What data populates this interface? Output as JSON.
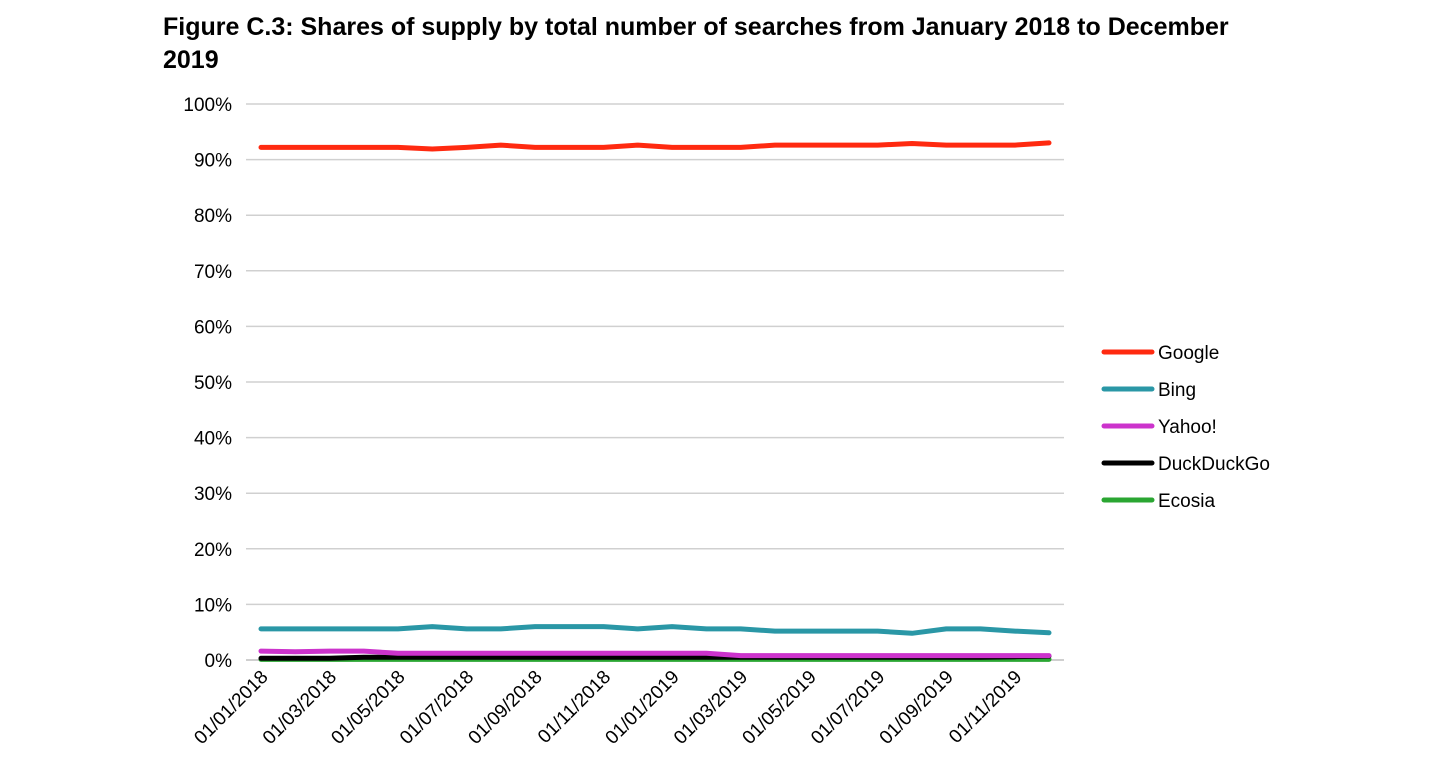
{
  "chart_data": {
    "type": "line",
    "title": "Figure C.3: Shares of supply by total number of searches from January 2018 to December 2019",
    "xlabel": "",
    "ylabel": "",
    "ylim": [
      0,
      100
    ],
    "y_ticks": [
      "0%",
      "10%",
      "20%",
      "30%",
      "40%",
      "50%",
      "60%",
      "70%",
      "80%",
      "90%",
      "100%"
    ],
    "x": [
      "01/01/2018",
      "01/02/2018",
      "01/03/2018",
      "01/04/2018",
      "01/05/2018",
      "01/06/2018",
      "01/07/2018",
      "01/08/2018",
      "01/09/2018",
      "01/10/2018",
      "01/11/2018",
      "01/12/2018",
      "01/01/2019",
      "01/02/2019",
      "01/03/2019",
      "01/04/2019",
      "01/05/2019",
      "01/06/2019",
      "01/07/2019",
      "01/08/2019",
      "01/09/2019",
      "01/10/2019",
      "01/11/2019",
      "01/12/2019"
    ],
    "x_tick_labels": [
      "01/01/2018",
      "01/03/2018",
      "01/05/2018",
      "01/07/2018",
      "01/09/2018",
      "01/11/2018",
      "01/01/2019",
      "01/03/2019",
      "01/05/2019",
      "01/07/2019",
      "01/09/2019",
      "01/11/2019"
    ],
    "grid": true,
    "legend_position": "right",
    "series": [
      {
        "name": "Google",
        "color": "#ff2a10",
        "values": [
          92.2,
          92.2,
          92.2,
          92.2,
          92.2,
          91.9,
          92.2,
          92.6,
          92.2,
          92.2,
          92.2,
          92.6,
          92.2,
          92.2,
          92.2,
          92.6,
          92.6,
          92.6,
          92.6,
          92.9,
          92.6,
          92.6,
          92.6,
          93.0
        ]
      },
      {
        "name": "Bing",
        "color": "#2a97a6",
        "values": [
          5.6,
          5.6,
          5.6,
          5.6,
          5.6,
          6.0,
          5.6,
          5.6,
          6.0,
          6.0,
          6.0,
          5.6,
          6.0,
          5.6,
          5.6,
          5.2,
          5.2,
          5.2,
          5.2,
          4.8,
          5.6,
          5.6,
          5.2,
          4.9
        ]
      },
      {
        "name": "Yahoo!",
        "color": "#cc33cc",
        "values": [
          1.6,
          1.5,
          1.6,
          1.6,
          1.2,
          1.2,
          1.2,
          1.2,
          1.2,
          1.2,
          1.2,
          1.2,
          1.2,
          1.2,
          0.8,
          0.8,
          0.8,
          0.8,
          0.8,
          0.8,
          0.8,
          0.8,
          0.8,
          0.8
        ]
      },
      {
        "name": "DuckDuckGo",
        "color": "#000000",
        "values": [
          0.3,
          0.3,
          0.3,
          0.5,
          0.5,
          0.5,
          0.5,
          0.5,
          0.5,
          0.5,
          0.5,
          0.5,
          0.5,
          0.5,
          0.5,
          0.5,
          0.5,
          0.5,
          0.5,
          0.5,
          0.5,
          0.5,
          0.6,
          0.7
        ]
      },
      {
        "name": "Ecosia",
        "color": "#2aa632",
        "values": [
          0.1,
          0.1,
          0.1,
          0.1,
          0.1,
          0.1,
          0.1,
          0.1,
          0.1,
          0.1,
          0.1,
          0.1,
          0.1,
          0.1,
          0.1,
          0.1,
          0.1,
          0.1,
          0.1,
          0.1,
          0.1,
          0.1,
          0.1,
          0.1
        ]
      }
    ]
  }
}
